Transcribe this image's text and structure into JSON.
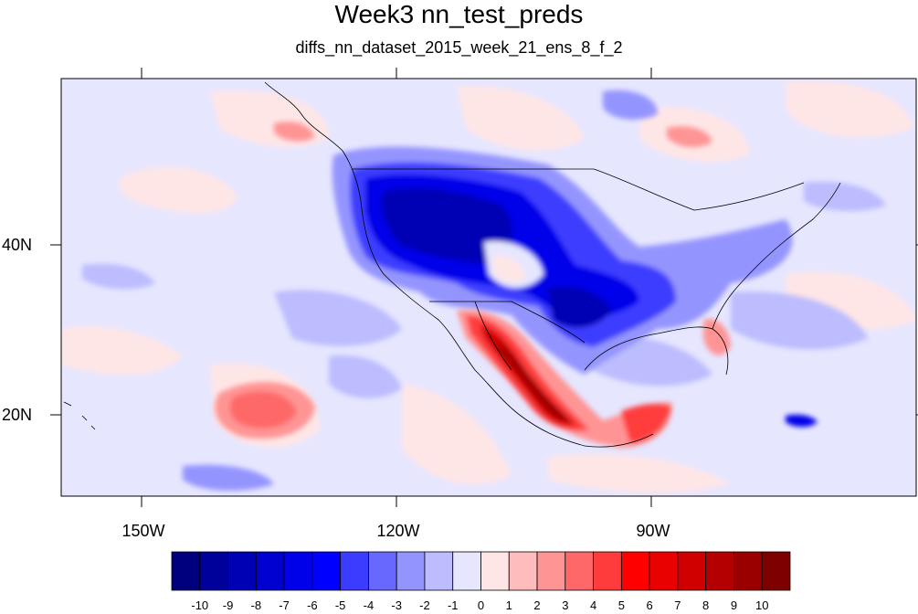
{
  "title": "Week3 nn_test_preds",
  "subtitle": "diffs_nn_dataset_2015_week_21_ens_8_f_2",
  "axes": {
    "lat_labels": [
      "40N",
      "20N"
    ],
    "lon_labels": [
      "150W",
      "120W",
      "90W"
    ]
  },
  "colorbar": {
    "labels": [
      "-10",
      "-9",
      "-8",
      "-7",
      "-6",
      "-5",
      "-4",
      "-3",
      "-2",
      "-1",
      "0",
      "1",
      "2",
      "3",
      "4",
      "5",
      "6",
      "7",
      "8",
      "9",
      "10"
    ],
    "colors": [
      "#00007f",
      "#00009a",
      "#0000b4",
      "#0000cf",
      "#0000e9",
      "#0000ff",
      "#3c3cff",
      "#6868ff",
      "#9494ff",
      "#bcbcff",
      "#e6e6ff",
      "#ffe6e6",
      "#ffbcbc",
      "#ff9494",
      "#ff6868",
      "#ff3c3c",
      "#ff0000",
      "#e90000",
      "#cf0000",
      "#b40000",
      "#9a0000",
      "#7f0000"
    ]
  },
  "palette": {
    "background": "#e6e6ff",
    "coast": "#000000"
  }
}
